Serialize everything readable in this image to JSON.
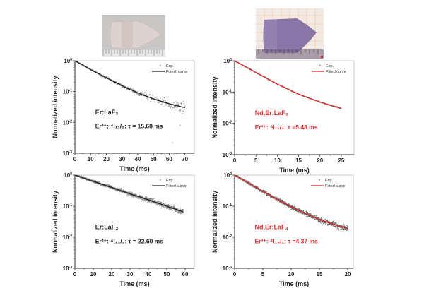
{
  "figure": {
    "photos": [
      {
        "name": "Er:LaF3 crystal",
        "tint": "#d9cfcc"
      },
      {
        "name": "Nd,Er:LaF3 crystal",
        "tint": "#8f7aa8"
      }
    ]
  },
  "chart_data": [
    {
      "type": "scatter",
      "panel": "top-left",
      "title": "",
      "xlabel": "Time (ms)",
      "ylabel": "Normalized intensity",
      "xlim": [
        0,
        76
      ],
      "ylim": [
        0.001,
        1
      ],
      "yscale": "log",
      "xticks": [
        "0",
        "10",
        "20",
        "30",
        "40",
        "50",
        "60",
        "70"
      ],
      "xtick_values": [
        0,
        10,
        20,
        30,
        40,
        50,
        60,
        70
      ],
      "yticks": [
        "10⁰",
        "10⁻¹",
        "10⁻²",
        "10⁻³"
      ],
      "ytick_values": [
        1,
        0.1,
        0.01,
        0.001
      ],
      "legend": {
        "position": "top-right",
        "entries": [
          "Exp.",
          "Fitted. curve"
        ]
      },
      "annotations": [
        "Er:LaF₃",
        "Er³⁺: ⁴I₁₁/₂: τ = 15.68 ms"
      ],
      "annotation_color": "#222222",
      "fit_color": "#222222",
      "exp_color": "#8a8a8a",
      "series": [
        {
          "name": "Exp.",
          "x_range": [
            0,
            70
          ],
          "start": 1.0,
          "end": 0.03,
          "noise": "increasing",
          "outliers": [
            [
              62,
              0.0022
            ],
            [
              67,
              0.008
            ]
          ]
        },
        {
          "name": "Fitted curve",
          "x": [
            0,
            10,
            20,
            30,
            40,
            50,
            60,
            70
          ],
          "y": [
            1.0,
            0.52,
            0.28,
            0.155,
            0.09,
            0.058,
            0.04,
            0.03
          ]
        }
      ]
    },
    {
      "type": "scatter",
      "panel": "top-right",
      "title": "",
      "xlabel": "Time (ms)",
      "ylabel": "Normalized intensity",
      "xlim": [
        0,
        28
      ],
      "ylim": [
        0.001,
        1
      ],
      "yscale": "log",
      "xticks": [
        "0",
        "5",
        "10",
        "15",
        "20",
        "25"
      ],
      "xtick_values": [
        0,
        5,
        10,
        15,
        20,
        25
      ],
      "yticks": [
        "10⁰",
        "10⁻¹",
        "10⁻²",
        "10⁻³"
      ],
      "ytick_values": [
        1,
        0.1,
        0.01,
        0.001
      ],
      "legend": {
        "position": "top-right",
        "entries": [
          "Exp.",
          "Fitted curve"
        ]
      },
      "annotations": [
        "Nd,Er:LaF₃",
        "Er³⁺: ⁴I₁₁/₂: τ =5.48 ms"
      ],
      "annotation_color": "#e03030",
      "fit_color": "#d62b2b",
      "exp_color": "#777777",
      "series": [
        {
          "name": "Exp.",
          "x_range": [
            0,
            25
          ],
          "start": 1.0,
          "end": 0.03,
          "noise": "small"
        },
        {
          "name": "Fitted curve",
          "x": [
            0,
            5,
            10,
            15,
            20,
            25
          ],
          "y": [
            1.0,
            0.42,
            0.18,
            0.085,
            0.048,
            0.03
          ]
        }
      ]
    },
    {
      "type": "scatter",
      "panel": "bottom-left",
      "title": "",
      "xlabel": "Time (ms)",
      "ylabel": "Normalized intensity",
      "xlim": [
        0,
        65
      ],
      "ylim": [
        0.001,
        1
      ],
      "yscale": "log",
      "xticks": [
        "0",
        "10",
        "20",
        "30",
        "40",
        "50",
        "60"
      ],
      "xtick_values": [
        0,
        10,
        20,
        30,
        40,
        50,
        60
      ],
      "yticks": [
        "10⁰",
        "10⁻¹",
        "10⁻²",
        "10⁻³"
      ],
      "ytick_values": [
        1,
        0.1,
        0.01,
        0.001
      ],
      "legend": {
        "position": "top-right",
        "entries": [
          "Exp.",
          "Fitted curve"
        ]
      },
      "annotations": [
        "Er:LaF₃",
        "Er³⁺: ⁴I₁₃/₂: τ = 22.60 ms"
      ],
      "annotation_color": "#222222",
      "fit_color": "#222222",
      "exp_color": "#8a8a8a",
      "series": [
        {
          "name": "Exp.",
          "x_range": [
            0,
            59
          ],
          "start": 1.0,
          "end": 0.065,
          "noise": "dense"
        },
        {
          "name": "Fitted curve",
          "x": [
            0,
            10,
            20,
            30,
            40,
            50,
            59
          ],
          "y": [
            1.0,
            0.63,
            0.4,
            0.25,
            0.16,
            0.1,
            0.065
          ]
        }
      ]
    },
    {
      "type": "scatter",
      "panel": "bottom-right",
      "title": "",
      "xlabel": "Time (ms)",
      "ylabel": "Normalized intensity",
      "xlim": [
        0,
        21
      ],
      "ylim": [
        0.001,
        1
      ],
      "yscale": "log",
      "xticks": [
        "0",
        "5",
        "10",
        "15",
        "20"
      ],
      "xtick_values": [
        0,
        5,
        10,
        15,
        20
      ],
      "yticks": [
        "10⁰",
        "10⁻¹",
        "10⁻²",
        "10⁻³"
      ],
      "ytick_values": [
        1,
        0.1,
        0.01,
        0.001
      ],
      "legend": {
        "position": "top-right",
        "entries": [
          "Exp.",
          "Fitted curve"
        ]
      },
      "annotations": [
        "Nd,Er:LaF₃",
        "Er³⁺: ⁴I₁₃/₂: τ =4.37 ms"
      ],
      "annotation_color": "#e03030",
      "fit_color": "#d62b2b",
      "exp_color": "#666666",
      "series": [
        {
          "name": "Exp.",
          "x_range": [
            0,
            20
          ],
          "start": 1.0,
          "end": 0.02,
          "noise": "dense"
        },
        {
          "name": "Fitted curve",
          "x": [
            0,
            2.5,
            5,
            7.5,
            10,
            12.5,
            15,
            17.5,
            20
          ],
          "y": [
            1.0,
            0.55,
            0.3,
            0.165,
            0.095,
            0.058,
            0.037,
            0.026,
            0.019
          ]
        }
      ]
    }
  ]
}
